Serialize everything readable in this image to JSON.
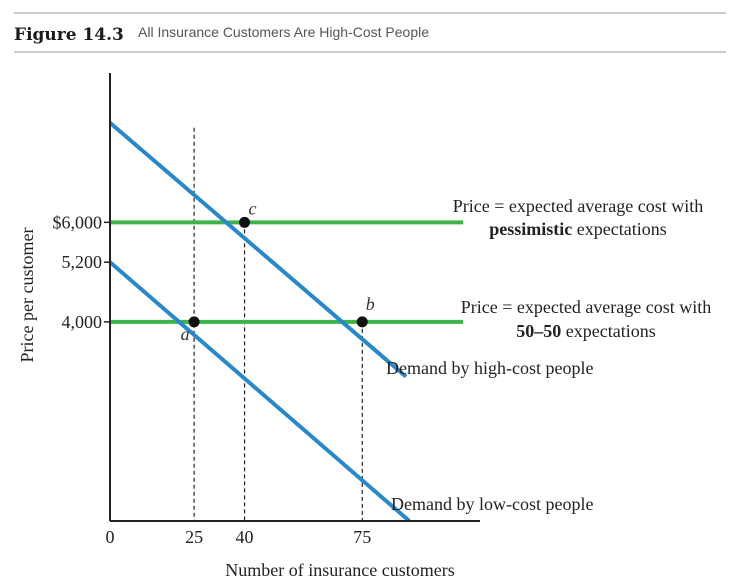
{
  "figure": {
    "label": "Figure 14.3",
    "title": "All Insurance Customers Are High-Cost People"
  },
  "chart_data": {
    "type": "line",
    "xlabel": "Number of insurance customers",
    "ylabel": "Price per customer",
    "xlim": [
      0,
      110
    ],
    "ylim": [
      0,
      9000
    ],
    "x_ticks": [
      {
        "value": 0,
        "label": "0"
      },
      {
        "value": 25,
        "label": "25"
      },
      {
        "value": 40,
        "label": "40"
      },
      {
        "value": 75,
        "label": "75"
      }
    ],
    "y_ticks": [
      {
        "value": 6000,
        "label": "$6,000"
      },
      {
        "value": 5200,
        "label": "5,200"
      },
      {
        "value": 4000,
        "label": "4,000"
      }
    ],
    "colors": {
      "demand": "#2a88c8",
      "price": "#3cb44a",
      "axis": "#222222",
      "point": "#111111"
    },
    "demand_lines": [
      {
        "name": "Demand by high-cost people",
        "x": [
          0,
          88
        ],
        "y": [
          8000,
          2900
        ]
      },
      {
        "name": "Demand by low-cost people",
        "x": [
          0,
          89
        ],
        "y": [
          5200,
          0
        ]
      }
    ],
    "price_lines": [
      {
        "name": "Price = expected average cost with pessimistic expectations",
        "y": 6000,
        "x": [
          0,
          105
        ]
      },
      {
        "name": "Price = expected average cost with 50–50 expectations",
        "y": 4000,
        "x": [
          0,
          105
        ]
      }
    ],
    "points": [
      {
        "label": "a",
        "x": 25,
        "y": 4000
      },
      {
        "label": "b",
        "x": 75,
        "y": 4000
      },
      {
        "label": "c",
        "x": 40,
        "y": 6000
      }
    ],
    "guides": [
      {
        "x": 25,
        "y": 7900
      },
      {
        "x": 40,
        "y": 6000
      },
      {
        "x": 75,
        "y": 4000
      }
    ],
    "annotations": {
      "pessimistic_line1": "Price = expected average cost with",
      "pessimistic_bold": "pessimistic",
      "pessimistic_rest": " expectations",
      "fifty_line1": "Price = expected average cost with",
      "fifty_bold": "50–50",
      "fifty_rest": " expectations",
      "high_demand": "Demand by high-cost people",
      "low_demand": "Demand by low-cost people"
    }
  }
}
